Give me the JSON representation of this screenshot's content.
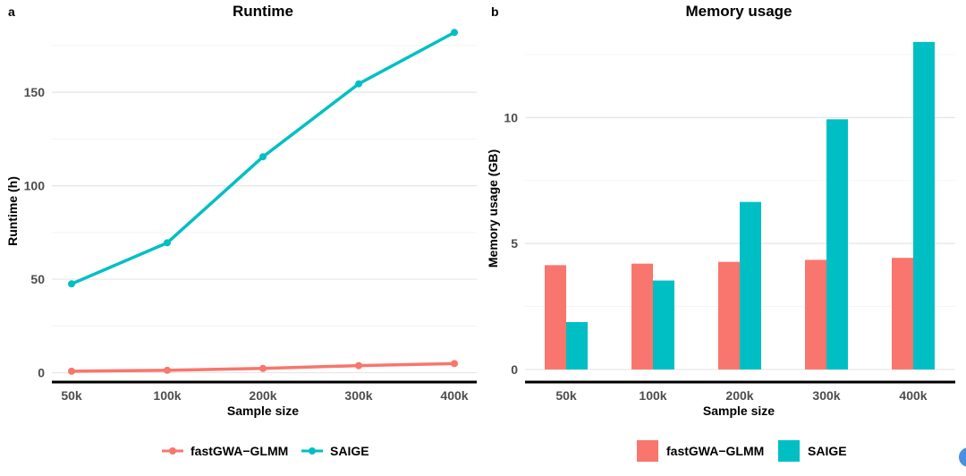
{
  "chart_data": [
    {
      "type": "line",
      "panel": "a",
      "title": "Runtime",
      "xlabel": "Sample size",
      "ylabel": "Runtime (h)",
      "categories": [
        "50k",
        "100k",
        "200k",
        "300k",
        "400k"
      ],
      "ylim": [
        -5,
        185
      ],
      "yticks": [
        0,
        50,
        100,
        150
      ],
      "grid": true,
      "legend": "bottom",
      "series": [
        {
          "name": "fastGWA−GLMM",
          "color": "#f8766d",
          "values": [
            0.8,
            1.3,
            2.3,
            3.8,
            4.9
          ]
        },
        {
          "name": "SAIGE",
          "color": "#00bfc4",
          "values": [
            47.5,
            69.5,
            115.5,
            154.5,
            182
          ]
        }
      ]
    },
    {
      "type": "bar",
      "panel": "b",
      "title": "Memory usage",
      "xlabel": "Sample size",
      "ylabel": "Memory usage (GB)",
      "categories": [
        "50k",
        "100k",
        "200k",
        "300k",
        "400k"
      ],
      "ylim": [
        -0.5,
        13.6
      ],
      "yticks": [
        0,
        5,
        10
      ],
      "grid": true,
      "legend": "bottom",
      "series": [
        {
          "name": "fastGWA−GLMM",
          "color": "#f8766d",
          "values": [
            4.14,
            4.2,
            4.27,
            4.35,
            4.43
          ]
        },
        {
          "name": "SAIGE",
          "color": "#00bfc4",
          "values": [
            1.88,
            3.53,
            6.65,
            9.93,
            13.0
          ]
        }
      ]
    }
  ]
}
